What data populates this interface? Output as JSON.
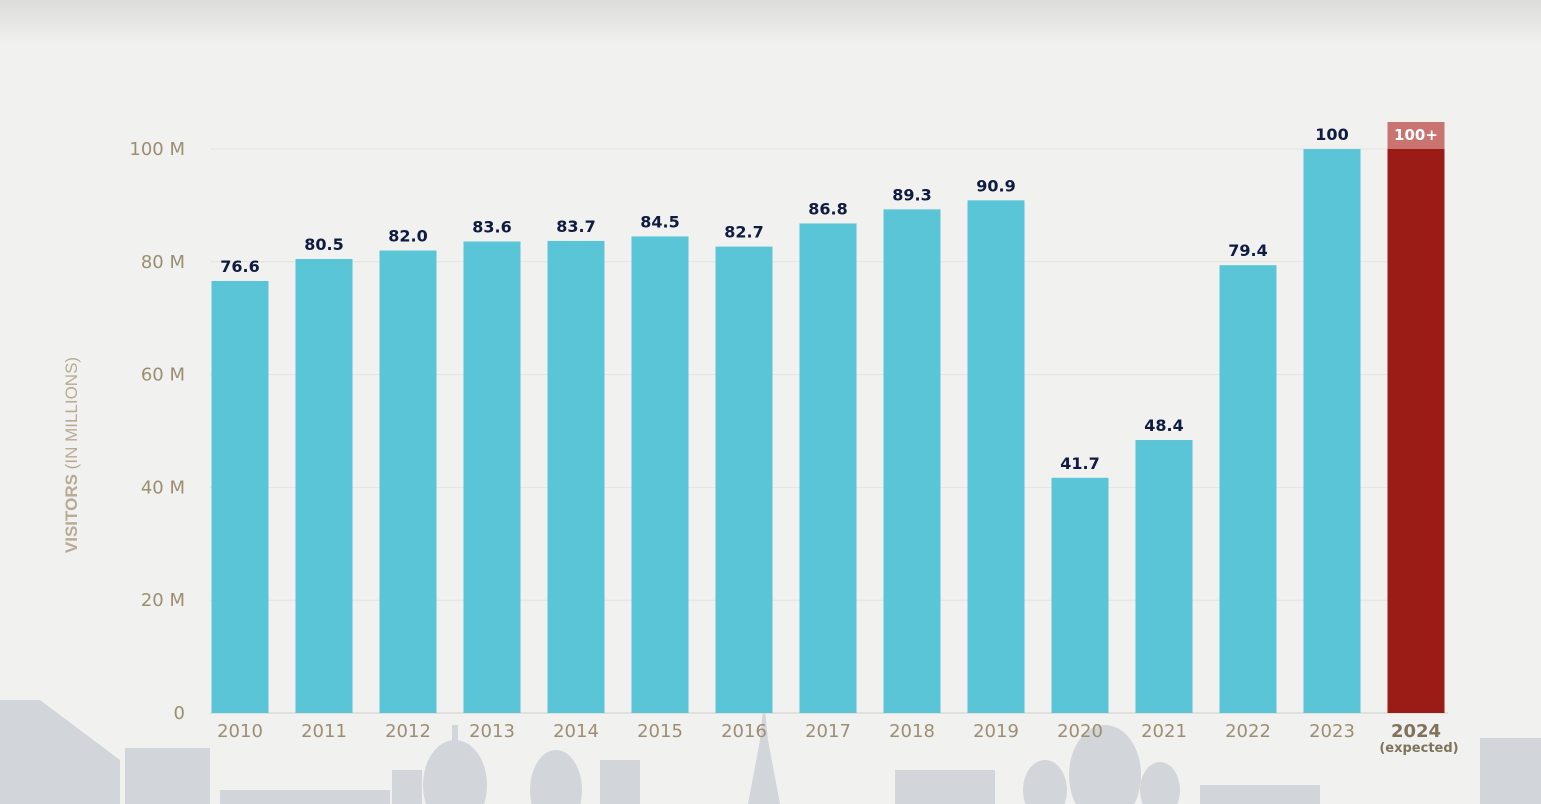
{
  "chart_data": {
    "type": "bar",
    "ylabel_main": "VISITORS",
    "ylabel_unit": "(IN MILLIONS)",
    "ylim": [
      0,
      100
    ],
    "y_ticks": [
      {
        "value": 0,
        "label": "0"
      },
      {
        "value": 20,
        "label": "20 M"
      },
      {
        "value": 40,
        "label": "40 M"
      },
      {
        "value": 60,
        "label": "60 M"
      },
      {
        "value": 80,
        "label": "80 M"
      },
      {
        "value": 100,
        "label": "100 M"
      }
    ],
    "grid": true,
    "categories": [
      "2010",
      "2011",
      "2012",
      "2013",
      "2014",
      "2015",
      "2016",
      "2017",
      "2018",
      "2019",
      "2020",
      "2021",
      "2022",
      "2023",
      "2024"
    ],
    "values": [
      76.6,
      80.5,
      82.0,
      83.6,
      83.7,
      84.5,
      82.7,
      86.8,
      89.3,
      90.9,
      41.7,
      48.4,
      79.4,
      100,
      100
    ],
    "data_labels": [
      "76.6",
      "80.5",
      "82.0",
      "83.6",
      "83.7",
      "84.5",
      "82.7",
      "86.8",
      "89.3",
      "90.9",
      "41.7",
      "48.4",
      "79.4",
      "100",
      "100+"
    ],
    "highlight": {
      "category": "2024",
      "note": "(expected)",
      "label": "100+"
    },
    "colors": {
      "bar": "#5bc5d8",
      "highlight": "#9b1c17",
      "highlight_tab": "#c97470",
      "label": "#0f1b40",
      "tick": "#9c8e72",
      "grid": "#e2e2e0"
    }
  }
}
